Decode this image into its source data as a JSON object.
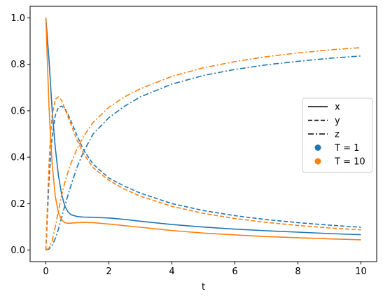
{
  "chart_data": {
    "type": "line",
    "title": "",
    "xlabel": "t",
    "ylabel": "",
    "xlim": [
      -0.5,
      10.5
    ],
    "ylim": [
      -0.05,
      1.05
    ],
    "xticks": [
      0,
      2,
      4,
      6,
      8,
      10
    ],
    "yticks": [
      0.0,
      0.2,
      0.4,
      0.6,
      0.8,
      1.0
    ],
    "xtick_labels": [
      "0",
      "2",
      "4",
      "6",
      "8",
      "10"
    ],
    "ytick_labels": [
      "0.0",
      "0.2",
      "0.4",
      "0.6",
      "0.8",
      "1.0"
    ],
    "grid": false,
    "legend_position": "center-right",
    "colors": {
      "T1": "#1f77b4",
      "T10": "#ff7f0e",
      "legend_style": "#000000"
    },
    "legend": [
      {
        "label": "x",
        "style": "solid"
      },
      {
        "label": "y",
        "style": "dashed"
      },
      {
        "label": "z",
        "style": "dashdot"
      },
      {
        "label": "T = 1",
        "marker": "circle",
        "color": "#1f77b4"
      },
      {
        "label": "T = 10",
        "marker": "circle",
        "color": "#ff7f0e"
      }
    ],
    "series": [
      {
        "group": "T = 1",
        "variable": "x",
        "style": "solid",
        "color": "#1f77b4",
        "x": [
          0,
          0.1,
          0.2,
          0.3,
          0.4,
          0.5,
          0.6,
          0.7,
          0.8,
          1.0,
          1.2,
          1.5,
          2,
          2.5,
          3,
          4,
          5,
          6,
          7,
          8,
          9,
          10
        ],
        "y": [
          1.0,
          0.82,
          0.6,
          0.44,
          0.32,
          0.24,
          0.19,
          0.165,
          0.152,
          0.144,
          0.142,
          0.141,
          0.138,
          0.132,
          0.124,
          0.11,
          0.099,
          0.09,
          0.083,
          0.077,
          0.071,
          0.066
        ]
      },
      {
        "group": "T = 1",
        "variable": "y",
        "style": "dashed",
        "color": "#1f77b4",
        "x": [
          0,
          0.05,
          0.1,
          0.2,
          0.3,
          0.4,
          0.5,
          0.6,
          0.7,
          0.8,
          1.0,
          1.2,
          1.5,
          2,
          2.5,
          3,
          4,
          5,
          6,
          7,
          8,
          9,
          10
        ],
        "y": [
          0.0,
          0.15,
          0.3,
          0.49,
          0.58,
          0.615,
          0.62,
          0.61,
          0.585,
          0.555,
          0.49,
          0.43,
          0.37,
          0.31,
          0.275,
          0.245,
          0.2,
          0.17,
          0.148,
          0.131,
          0.118,
          0.107,
          0.098
        ]
      },
      {
        "group": "T = 1",
        "variable": "z",
        "style": "dashdot",
        "color": "#1f77b4",
        "x": [
          0,
          0.1,
          0.2,
          0.3,
          0.4,
          0.5,
          0.6,
          0.7,
          0.8,
          1.0,
          1.2,
          1.5,
          2,
          2.5,
          3,
          4,
          5,
          6,
          7,
          8,
          9,
          10
        ],
        "y": [
          0.0,
          0.004,
          0.02,
          0.05,
          0.09,
          0.14,
          0.19,
          0.235,
          0.28,
          0.36,
          0.425,
          0.5,
          0.57,
          0.62,
          0.66,
          0.715,
          0.752,
          0.778,
          0.798,
          0.813,
          0.826,
          0.836
        ]
      },
      {
        "group": "T = 10",
        "variable": "x",
        "style": "solid",
        "color": "#ff7f0e",
        "x": [
          0,
          0.05,
          0.1,
          0.15,
          0.2,
          0.3,
          0.4,
          0.5,
          0.6,
          0.7,
          0.8,
          1.0,
          1.2,
          1.5,
          2,
          3,
          4,
          5,
          6,
          7,
          8,
          9,
          10
        ],
        "y": [
          1.0,
          0.8,
          0.62,
          0.48,
          0.37,
          0.23,
          0.16,
          0.13,
          0.118,
          0.115,
          0.116,
          0.118,
          0.119,
          0.118,
          0.112,
          0.098,
          0.084,
          0.073,
          0.065,
          0.058,
          0.053,
          0.048,
          0.044
        ]
      },
      {
        "group": "T = 10",
        "variable": "y",
        "style": "dashed",
        "color": "#ff7f0e",
        "x": [
          0,
          0.05,
          0.1,
          0.15,
          0.2,
          0.3,
          0.4,
          0.5,
          0.6,
          0.7,
          0.8,
          1.0,
          1.2,
          1.5,
          2,
          2.5,
          3,
          4,
          5,
          6,
          7,
          8,
          9,
          10
        ],
        "y": [
          0.0,
          0.2,
          0.37,
          0.5,
          0.58,
          0.65,
          0.66,
          0.645,
          0.61,
          0.575,
          0.54,
          0.47,
          0.415,
          0.355,
          0.3,
          0.262,
          0.232,
          0.188,
          0.158,
          0.136,
          0.119,
          0.106,
          0.095,
          0.087
        ]
      },
      {
        "group": "T = 10",
        "variable": "z",
        "style": "dashdot",
        "color": "#ff7f0e",
        "x": [
          0,
          0.1,
          0.2,
          0.3,
          0.4,
          0.5,
          0.6,
          0.7,
          0.8,
          1.0,
          1.2,
          1.5,
          2,
          2.5,
          3,
          4,
          5,
          6,
          7,
          8,
          9,
          10
        ],
        "y": [
          0.0,
          0.008,
          0.04,
          0.1,
          0.17,
          0.235,
          0.29,
          0.335,
          0.375,
          0.44,
          0.49,
          0.55,
          0.615,
          0.66,
          0.695,
          0.748,
          0.785,
          0.812,
          0.833,
          0.849,
          0.862,
          0.872
        ]
      }
    ]
  }
}
